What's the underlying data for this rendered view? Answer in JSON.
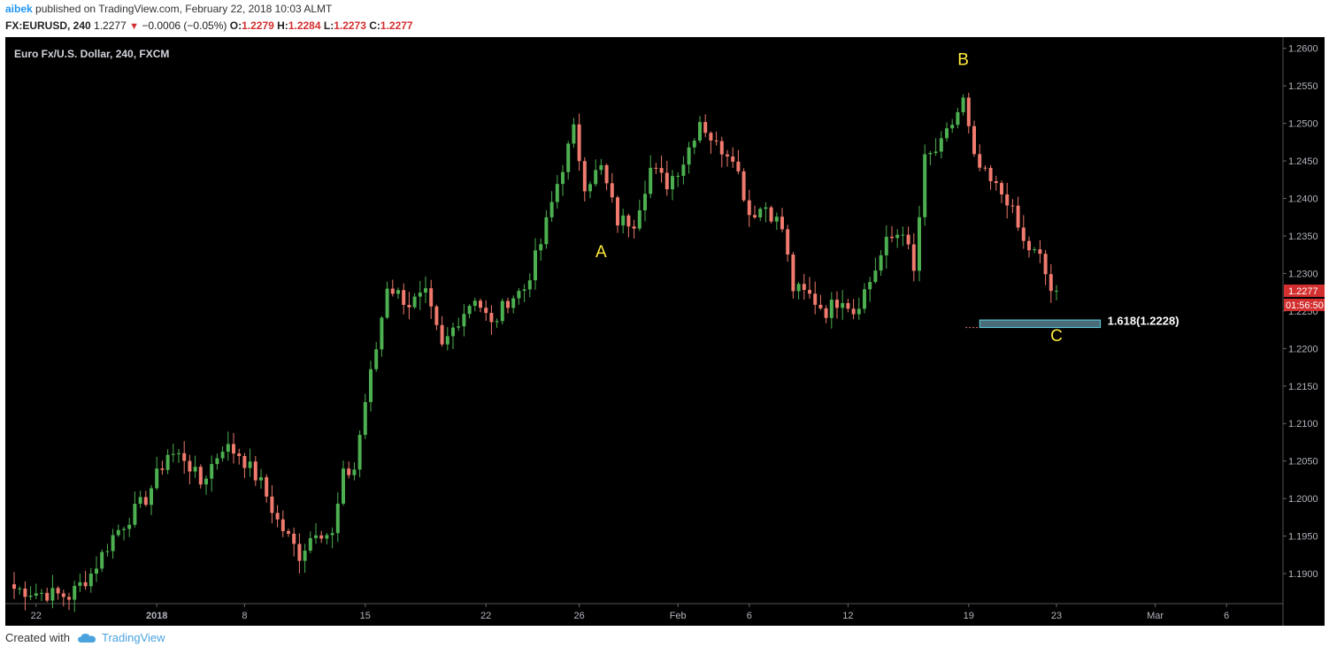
{
  "header": {
    "user": "aibek",
    "published_text": " published on TradingView.com, February 22, 2018 10:03 ALMT",
    "symbol": "FX:EURUSD, 240",
    "last": "1.2277",
    "change_icon": "triangle-down-icon",
    "change": "−0.0006 (−0.05%)",
    "open_label": "O:",
    "open": "1.2279",
    "high_label": "H:",
    "high": "1.2284",
    "low_label": "L:",
    "low": "1.2273",
    "close_label": "C:",
    "close": "1.2277"
  },
  "footer": {
    "created_with": "Created with",
    "brand": "TradingView",
    "logo_icon": "tradingview-cloud-icon"
  },
  "colors": {
    "background": "#000000",
    "up": "#4caf50",
    "down": "#ef7a6d",
    "axis_text": "#b2b5be",
    "annotation": "#ffeb3b",
    "price_tag": "#d32f2f",
    "fib_box": "#4a6b78",
    "fib_border": "#5fd4e3"
  },
  "chart_data": {
    "type": "candlestick",
    "title": "Euro Fx/U.S. Dollar, 240, FXCM",
    "ylim": [
      1.186,
      1.2615
    ],
    "y_ticks": [
      "1.2600",
      "1.2550",
      "1.2500",
      "1.2450",
      "1.2400",
      "1.2350",
      "1.2300",
      "1.2250",
      "1.2200",
      "1.2150",
      "1.2100",
      "1.2050",
      "1.2000",
      "1.1950",
      "1.1900"
    ],
    "x_ticks": [
      {
        "label": "22",
        "bar": 4
      },
      {
        "label": "2018",
        "bar": 26
      },
      {
        "label": "8",
        "bar": 42
      },
      {
        "label": "15",
        "bar": 64
      },
      {
        "label": "22",
        "bar": 86
      },
      {
        "label": "26",
        "bar": 103
      },
      {
        "label": "Feb",
        "bar": 121
      },
      {
        "label": "6",
        "bar": 134
      },
      {
        "label": "12",
        "bar": 152
      },
      {
        "label": "19",
        "bar": 174
      },
      {
        "label": "23",
        "bar": 190
      },
      {
        "label": "Mar",
        "bar": 208
      },
      {
        "label": "6",
        "bar": 221
      }
    ],
    "anchors": [
      [
        0,
        1.188
      ],
      [
        4,
        1.1875
      ],
      [
        10,
        1.187
      ],
      [
        14,
        1.19
      ],
      [
        18,
        1.195
      ],
      [
        24,
        1.2
      ],
      [
        28,
        1.206
      ],
      [
        31,
        1.2055
      ],
      [
        34,
        1.202
      ],
      [
        38,
        1.207
      ],
      [
        41,
        1.206
      ],
      [
        45,
        1.202
      ],
      [
        48,
        1.197
      ],
      [
        52,
        1.1925
      ],
      [
        55,
        1.196
      ],
      [
        58,
        1.195
      ],
      [
        60,
        1.203
      ],
      [
        62,
        1.204
      ],
      [
        64,
        1.213
      ],
      [
        66,
        1.22
      ],
      [
        68,
        1.2285
      ],
      [
        72,
        1.226
      ],
      [
        75,
        1.227
      ],
      [
        78,
        1.22
      ],
      [
        81,
        1.224
      ],
      [
        84,
        1.227
      ],
      [
        87,
        1.223
      ],
      [
        90,
        1.2265
      ],
      [
        93,
        1.228
      ],
      [
        96,
        1.234
      ],
      [
        99,
        1.242
      ],
      [
        102,
        1.249
      ],
      [
        104,
        1.242
      ],
      [
        107,
        1.244
      ],
      [
        110,
        1.237
      ],
      [
        113,
        1.237
      ],
      [
        116,
        1.244
      ],
      [
        119,
        1.242
      ],
      [
        122,
        1.245
      ],
      [
        125,
        1.2505
      ],
      [
        128,
        1.247
      ],
      [
        131,
        1.246
      ],
      [
        134,
        1.238
      ],
      [
        137,
        1.239
      ],
      [
        140,
        1.236
      ],
      [
        142,
        1.228
      ],
      [
        145,
        1.227
      ],
      [
        148,
        1.225
      ],
      [
        151,
        1.227
      ],
      [
        153,
        1.225
      ],
      [
        156,
        1.229
      ],
      [
        159,
        1.234
      ],
      [
        162,
        1.236
      ],
      [
        164,
        1.23
      ],
      [
        166,
        1.245
      ],
      [
        169,
        1.247
      ],
      [
        171,
        1.25
      ],
      [
        173,
        1.253
      ],
      [
        175,
        1.245
      ],
      [
        178,
        1.242
      ],
      [
        181,
        1.24
      ],
      [
        184,
        1.234
      ],
      [
        187,
        1.232
      ],
      [
        189,
        1.2278
      ],
      [
        190,
        1.2277
      ]
    ],
    "labels": [
      {
        "text": "A",
        "bar": 107,
        "price": 1.2322
      },
      {
        "text": "B",
        "bar": 173,
        "price": 1.2578
      },
      {
        "text": "C",
        "bar": 190,
        "price": 1.221
      }
    ],
    "fib": {
      "label": "1.618(1.2228)",
      "price": 1.2228,
      "top": 1.2238,
      "bar_start": 176,
      "bar_end": 198
    },
    "price_tag": {
      "value": "1.2277",
      "timer": "01:56:50",
      "price": 1.2277
    }
  }
}
